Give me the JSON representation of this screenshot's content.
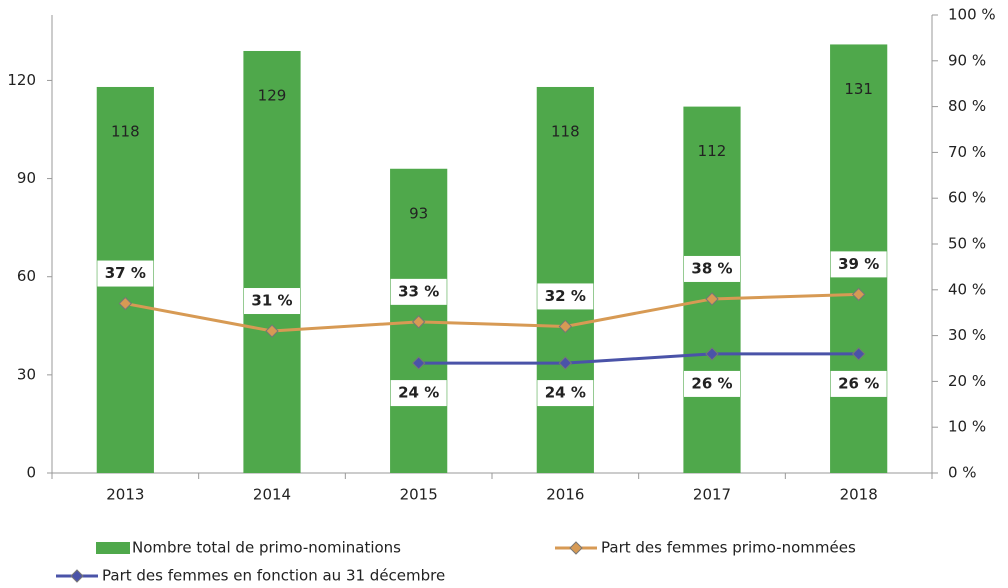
{
  "chart_data": {
    "type": "bar",
    "categories": [
      "2013",
      "2014",
      "2015",
      "2016",
      "2017",
      "2018"
    ],
    "ylim": [
      0,
      140
    ],
    "yticks": [
      0,
      30,
      60,
      90,
      120
    ],
    "y2lim": [
      0,
      100
    ],
    "y2ticks": [
      {
        "value": 0,
        "label": "0 %"
      },
      {
        "value": 10,
        "label": "10 %"
      },
      {
        "value": 20,
        "label": "20 %"
      },
      {
        "value": 30,
        "label": "30 %"
      },
      {
        "value": 40,
        "label": "40 %"
      },
      {
        "value": 50,
        "label": "50 %"
      },
      {
        "value": 60,
        "label": "60 %"
      },
      {
        "value": 70,
        "label": "70 %"
      },
      {
        "value": 80,
        "label": "80 %"
      },
      {
        "value": 90,
        "label": "90 %"
      },
      {
        "value": 100,
        "label": "100 %"
      }
    ],
    "grid": false,
    "series": [
      {
        "name": "Nombre total de primo-nominations",
        "type": "bar",
        "color": "#4fa84b",
        "values": [
          118,
          129,
          93,
          118,
          112,
          131
        ]
      },
      {
        "name": "Part des femmes primo-nommées",
        "type": "line",
        "axis": "y2",
        "color": "#d79a54",
        "values": [
          37,
          31,
          33,
          32,
          38,
          39
        ],
        "value_labels": [
          "37 %",
          "31 %",
          "33 %",
          "32 %",
          "38 %",
          "39 %"
        ]
      },
      {
        "name": "Part des femmes en fonction au 31 décembre",
        "type": "line",
        "axis": "y2",
        "color": "#4a53a8",
        "values": [
          null,
          null,
          24,
          24,
          26,
          26
        ],
        "value_labels": [
          null,
          null,
          "24 %",
          "24 %",
          "26 %",
          "26 %"
        ]
      }
    ]
  }
}
